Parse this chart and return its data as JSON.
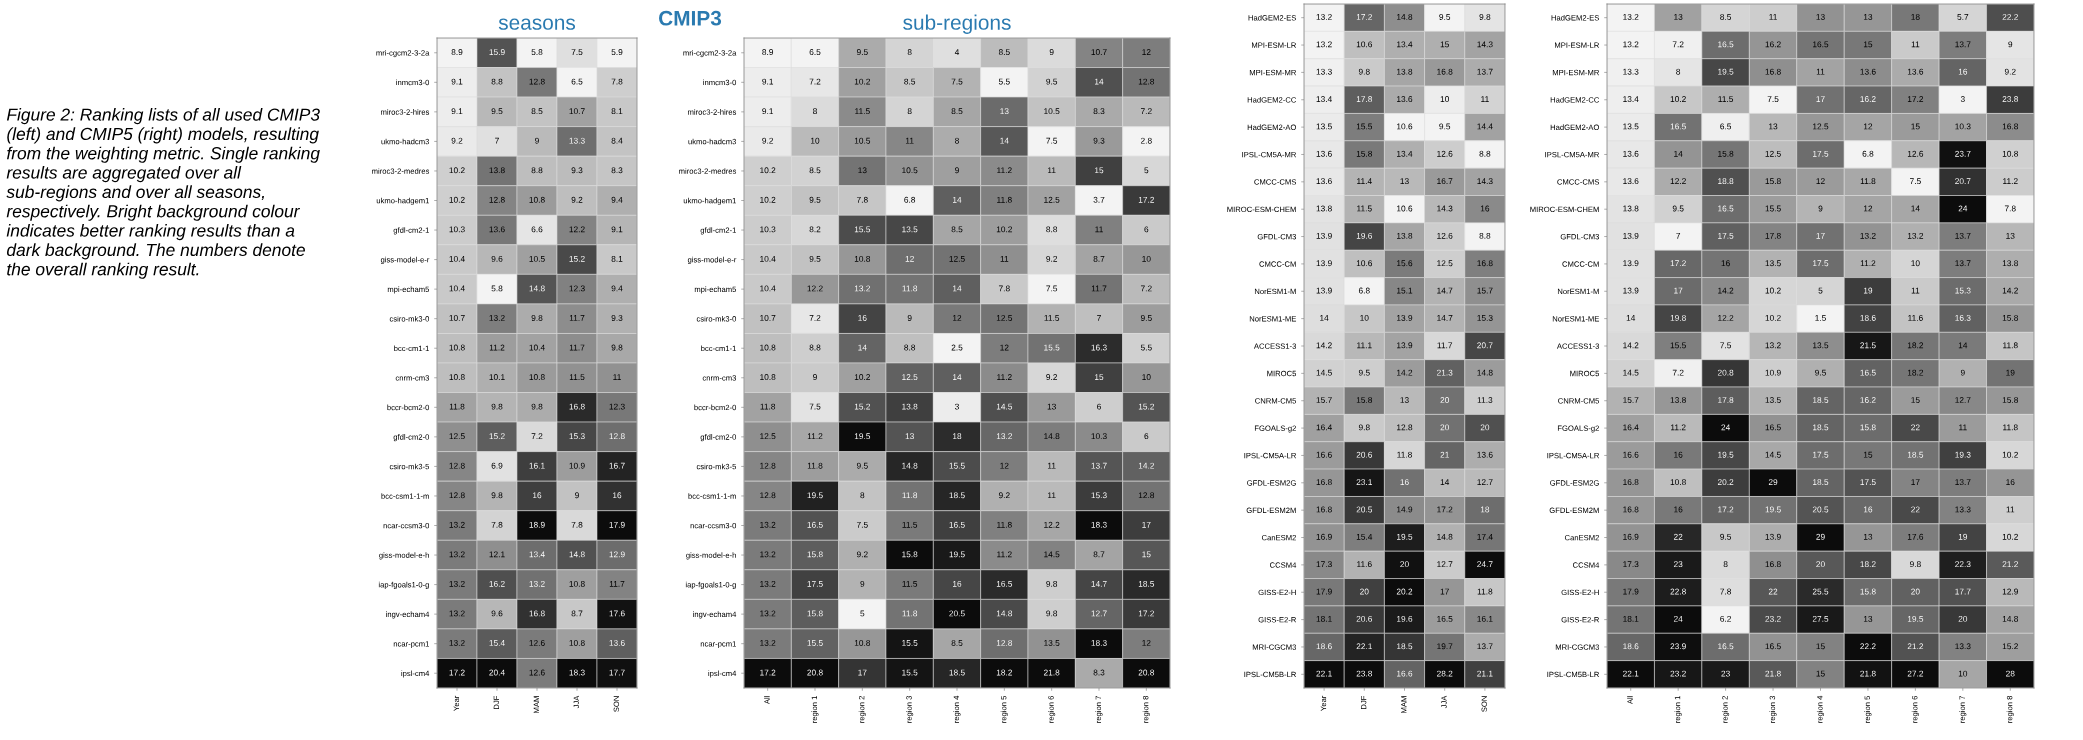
{
  "chart_data": [
    {
      "type": "heatmap",
      "title": "seasons",
      "annotations": [
        "Figure 2: Ranking lists of all used CMIP3 (left) and CMIP5 (right) models, resulting from the weighting metric. Single ranking results are aggregated over all sub-regions and over all seasons, respectively. Bright background colour indicates better ranking results than a dark background. The numbers denote the overall ranking result.",
        "CMIP3"
      ],
      "data_labels": true,
      "categories": [
        "Year",
        "DJF",
        "MAM",
        "JJA",
        "SON"
      ],
      "y_categories": [
        "mri-cgcm2-3-2a",
        "inmcm3-0",
        "miroc3-2-hires",
        "ukmo-hadcm3",
        "miroc3-2-medres",
        "ukmo-hadgem1",
        "gfdl-cm2-1",
        "giss-model-e-r",
        "mpi-echam5",
        "csiro-mk3-0",
        "bcc-cm1-1",
        "cnrm-cm3",
        "bccr-bcm2-0",
        "gfdl-cm2-0",
        "csiro-mk3-5",
        "bcc-csm1-1-m",
        "ncar-ccsm3-0",
        "giss-model-e-h",
        "iap-fgoals1-0-g",
        "ingv-echam4",
        "ncar-pcm1",
        "ipsl-cm4"
      ],
      "cells": [
        [
          8.9,
          15.9,
          5.8,
          7.5,
          5.9
        ],
        [
          9.1,
          8.8,
          12.8,
          6.5,
          7.8
        ],
        [
          9.1,
          9.5,
          8.5,
          10.7,
          8.1
        ],
        [
          9.2,
          7,
          9,
          13.3,
          8.4
        ],
        [
          10.2,
          13.8,
          8.8,
          9.3,
          8.3
        ],
        [
          10.2,
          12.8,
          10.8,
          9.2,
          9.4
        ],
        [
          10.3,
          13.6,
          6.6,
          12.2,
          9.1
        ],
        [
          10.4,
          9.6,
          10.5,
          15.2,
          8.1
        ],
        [
          10.4,
          5.8,
          14.8,
          12.3,
          9.4
        ],
        [
          10.7,
          13.2,
          9.8,
          11.7,
          9.3
        ],
        [
          10.8,
          11.2,
          10.4,
          11.7,
          9.8
        ],
        [
          10.8,
          10.1,
          10.8,
          11.5,
          11
        ],
        [
          11.8,
          9.8,
          9.8,
          16.8,
          12.3
        ],
        [
          12.5,
          15.2,
          7.2,
          15.3,
          12.8
        ],
        [
          12.8,
          6.9,
          16.1,
          10.9,
          16.7
        ],
        [
          12.8,
          9.8,
          16,
          9,
          16
        ],
        [
          13.2,
          7.8,
          18.9,
          7.8,
          17.9
        ],
        [
          13.2,
          12.1,
          13.4,
          14.8,
          12.9
        ],
        [
          13.2,
          16.2,
          13.2,
          10.8,
          11.7
        ],
        [
          13.2,
          9.6,
          16.8,
          8.7,
          17.6
        ],
        [
          13.2,
          15.4,
          12.6,
          10.8,
          13.6
        ],
        [
          17.2,
          20.4,
          12.6,
          18.3,
          17.7
        ]
      ]
    },
    {
      "type": "heatmap",
      "title": "sub-regions",
      "data_labels": true,
      "categories": [
        "All",
        "region 1",
        "region 2",
        "region 3",
        "region 4",
        "region 5",
        "region 6",
        "region 7",
        "region 8"
      ],
      "y_categories": [
        "mri-cgcm2-3-2a",
        "inmcm3-0",
        "miroc3-2-hires",
        "ukmo-hadcm3",
        "miroc3-2-medres",
        "ukmo-hadgem1",
        "gfdl-cm2-1",
        "giss-model-e-r",
        "mpi-echam5",
        "csiro-mk3-0",
        "bcc-cm1-1",
        "cnrm-cm3",
        "bccr-bcm2-0",
        "gfdl-cm2-0",
        "csiro-mk3-5",
        "bcc-csm1-1-m",
        "ncar-ccsm3-0",
        "giss-model-e-h",
        "iap-fgoals1-0-g",
        "ingv-echam4",
        "ncar-pcm1",
        "ipsl-cm4"
      ],
      "cells": [
        [
          8.9,
          6.5,
          9.5,
          8,
          4,
          8.5,
          9,
          10.7,
          12
        ],
        [
          9.1,
          7.2,
          10.2,
          8.5,
          7.5,
          5.5,
          9.5,
          14,
          12.8
        ],
        [
          9.1,
          8,
          11.5,
          8,
          8.5,
          13,
          10.5,
          8.3,
          7.2
        ],
        [
          9.2,
          10,
          10.5,
          11,
          8,
          14,
          7.5,
          9.3,
          2.8
        ],
        [
          10.2,
          8.5,
          13,
          10.5,
          9,
          11.2,
          11,
          15,
          5
        ],
        [
          10.2,
          9.5,
          7.8,
          6.8,
          14,
          11.8,
          12.5,
          3.7,
          17.2
        ],
        [
          10.3,
          8.2,
          15.5,
          13.5,
          8.5,
          10.2,
          8.8,
          11,
          6
        ],
        [
          10.4,
          9.5,
          10.8,
          12,
          12.5,
          11,
          9.2,
          8.7,
          10
        ],
        [
          10.4,
          12.2,
          13.2,
          11.8,
          14,
          7.8,
          7.5,
          11.7,
          7.2
        ],
        [
          10.7,
          7.2,
          16,
          9,
          12,
          12.5,
          11.5,
          7,
          9.5
        ],
        [
          10.8,
          8.8,
          14,
          8.8,
          2.5,
          12,
          15.5,
          16.3,
          5.5
        ],
        [
          10.8,
          9,
          10.2,
          12.5,
          14,
          11.2,
          9.2,
          15,
          10
        ],
        [
          11.8,
          7.5,
          15.2,
          13.8,
          3,
          14.5,
          13,
          6,
          15.2
        ],
        [
          12.5,
          11.2,
          19.5,
          13,
          18,
          13.2,
          14.8,
          10.3,
          6
        ],
        [
          12.8,
          11.8,
          9.5,
          14.8,
          15.5,
          12,
          11,
          13.7,
          14.2
        ],
        [
          12.8,
          19.5,
          8,
          11.8,
          18.5,
          9.2,
          11,
          15.3,
          12.8
        ],
        [
          13.2,
          16.5,
          7.5,
          11.5,
          16.5,
          11.8,
          12.2,
          18.3,
          17
        ],
        [
          13.2,
          15.8,
          9.2,
          15.8,
          19.5,
          11.2,
          14.5,
          8.7,
          15
        ],
        [
          13.2,
          17.5,
          9,
          11.5,
          16,
          16.5,
          9.8,
          14.7,
          18.5
        ],
        [
          13.2,
          15.8,
          5,
          11.8,
          20.5,
          14.8,
          9.8,
          12.7,
          17.2
        ],
        [
          13.2,
          15.5,
          10.8,
          15.5,
          8.5,
          12.8,
          13.5,
          18.3,
          12
        ],
        [
          17.2,
          20.8,
          17,
          15.5,
          18.5,
          18.2,
          21.8,
          8.3,
          20.8
        ]
      ]
    },
    {
      "type": "heatmap",
      "data_labels": true,
      "categories": [
        "Year",
        "DJF",
        "MAM",
        "JJA",
        "SON"
      ],
      "y_categories": [
        "HadGEM2-ES",
        "MPI-ESM-LR",
        "MPI-ESM-MR",
        "HadGEM2-CC",
        "HadGEM2-AO",
        "IPSL-CM5A-MR",
        "CMCC-CMS",
        "MIROC-ESM-CHEM",
        "GFDL-CM3",
        "CMCC-CM",
        "NorESM1-M",
        "NorESM1-ME",
        "ACCESS1-3",
        "MIROC5",
        "CNRM-CM5",
        "FGOALS-g2",
        "IPSL-CM5A-LR",
        "GFDL-ESM2G",
        "GFDL-ESM2M",
        "CanESM2",
        "CCSM4",
        "GISS-E2-H",
        "GISS-E2-R",
        "MRI-CGCM3",
        "IPSL-CM5B-LR"
      ],
      "cells": [
        [
          13.2,
          17.2,
          14.8,
          9.5,
          9.8
        ],
        [
          13.2,
          10.6,
          13.4,
          15,
          14.3
        ],
        [
          13.3,
          9.8,
          13.8,
          16.8,
          13.7
        ],
        [
          13.4,
          17.8,
          13.6,
          10,
          11
        ],
        [
          13.5,
          15.5,
          10.6,
          9.5,
          14.4
        ],
        [
          13.6,
          15.8,
          13.4,
          12.6,
          8.8
        ],
        [
          13.6,
          11.4,
          13,
          16.7,
          14.3
        ],
        [
          13.8,
          11.5,
          10.6,
          14.3,
          16
        ],
        [
          13.9,
          19.6,
          13.8,
          12.6,
          8.8
        ],
        [
          13.9,
          10.6,
          15.6,
          12.5,
          16.8
        ],
        [
          13.9,
          6.8,
          15.1,
          14.7,
          15.7
        ],
        [
          14,
          10,
          13.9,
          14.7,
          15.3
        ],
        [
          14.2,
          11.1,
          13.9,
          11.7,
          20.7
        ],
        [
          14.5,
          9.5,
          14.2,
          21.3,
          14.8
        ],
        [
          15.7,
          15.8,
          13,
          20,
          11.3
        ],
        [
          16.4,
          9.8,
          12.8,
          20,
          20
        ],
        [
          16.6,
          20.6,
          11.8,
          21,
          13.6
        ],
        [
          16.8,
          23.1,
          16,
          14,
          12.7
        ],
        [
          16.8,
          20.5,
          14.9,
          17.2,
          18
        ],
        [
          16.9,
          15.4,
          19.5,
          14.8,
          17.4
        ],
        [
          17.3,
          11.6,
          20,
          12.7,
          24.7
        ],
        [
          17.9,
          20,
          20.2,
          17,
          11.8
        ],
        [
          18.1,
          20.6,
          19.6,
          16.5,
          16.1
        ],
        [
          18.6,
          22.1,
          18.5,
          19.7,
          13.7
        ],
        [
          22.1,
          23.8,
          16.6,
          28.2,
          21.1
        ]
      ]
    },
    {
      "type": "heatmap",
      "data_labels": true,
      "categories": [
        "All",
        "region 1",
        "region 2",
        "region 3",
        "region 4",
        "region 5",
        "region 6",
        "region 7",
        "region 8"
      ],
      "y_categories": [
        "HadGEM2-ES",
        "MPI-ESM-LR",
        "MPI-ESM-MR",
        "HadGEM2-CC",
        "HadGEM2-AO",
        "IPSL-CM5A-MR",
        "CMCC-CMS",
        "MIROC-ESM-CHEM",
        "GFDL-CM3",
        "CMCC-CM",
        "NorESM1-M",
        "NorESM1-ME",
        "ACCESS1-3",
        "MIROC5",
        "CNRM-CM5",
        "FGOALS-g2",
        "IPSL-CM5A-LR",
        "GFDL-ESM2G",
        "GFDL-ESM2M",
        "CanESM2",
        "CCSM4",
        "GISS-E2-H",
        "GISS-E2-R",
        "MRI-CGCM3",
        "IPSL-CM5B-LR"
      ],
      "cells": [
        [
          13.2,
          13,
          8.5,
          11,
          13,
          13,
          18,
          5.7,
          22.2
        ],
        [
          13.2,
          7.2,
          16.5,
          16.2,
          16.5,
          15,
          11,
          13.7,
          9
        ],
        [
          13.3,
          8,
          19.5,
          16.8,
          11,
          13.6,
          13.6,
          16,
          9.2
        ],
        [
          13.4,
          10.2,
          11.5,
          7.5,
          17,
          16.2,
          17.2,
          3,
          23.8
        ],
        [
          13.5,
          16.5,
          6.5,
          13,
          12.5,
          12,
          15,
          10.3,
          16.8
        ],
        [
          13.6,
          14,
          15.8,
          12.5,
          17.5,
          6.8,
          12.6,
          23.7,
          10.8
        ],
        [
          13.6,
          12.2,
          18.8,
          15.8,
          12,
          11.8,
          7.5,
          20.7,
          11.2
        ],
        [
          13.8,
          9.5,
          16.5,
          15.5,
          9,
          12,
          14,
          24,
          7.8
        ],
        [
          13.9,
          7,
          17.5,
          17.8,
          17,
          13.2,
          13.2,
          13.7,
          13
        ],
        [
          13.9,
          17.2,
          16,
          13.5,
          17.5,
          11.2,
          10,
          13.7,
          13.8
        ],
        [
          13.9,
          17,
          14.2,
          10.2,
          5,
          19,
          11,
          15.3,
          14.2
        ],
        [
          14,
          19.8,
          12.2,
          10.2,
          1.5,
          18.6,
          11.6,
          16.3,
          15.8
        ],
        [
          14.2,
          15.5,
          7.5,
          13.2,
          13.5,
          21.5,
          18.2,
          14,
          11.8
        ],
        [
          14.5,
          7.2,
          20.8,
          10.9,
          9.5,
          16.5,
          18.2,
          9,
          19
        ],
        [
          15.7,
          13.8,
          17.8,
          13.5,
          18.5,
          16.2,
          15,
          12.7,
          15.8
        ],
        [
          16.4,
          11.2,
          24,
          16.5,
          18.5,
          15.8,
          22,
          11,
          11.8
        ],
        [
          16.6,
          16,
          19.5,
          14.5,
          17.5,
          15,
          18.5,
          19.3,
          10.2
        ],
        [
          16.8,
          10.8,
          20.2,
          29,
          18.5,
          17.5,
          17,
          13.7,
          16
        ],
        [
          16.8,
          16,
          17.2,
          19.5,
          20.5,
          16,
          22,
          13.3,
          11
        ],
        [
          16.9,
          22,
          9.5,
          13.9,
          29,
          13,
          17.6,
          19,
          10.2
        ],
        [
          17.3,
          23,
          8,
          16.8,
          20,
          18.2,
          9.8,
          22.3,
          21.2
        ],
        [
          17.9,
          22.8,
          7.8,
          22,
          25.5,
          15.8,
          20,
          17.7,
          12.9
        ],
        [
          18.1,
          24,
          6.2,
          23.2,
          27.5,
          13,
          19.5,
          20,
          14.8
        ],
        [
          18.6,
          23.9,
          16.5,
          16.5,
          15,
          22.2,
          21.2,
          13.3,
          15.2
        ],
        [
          22.1,
          23.2,
          23,
          21.8,
          15,
          21.8,
          27.2,
          10,
          28
        ]
      ]
    }
  ]
}
